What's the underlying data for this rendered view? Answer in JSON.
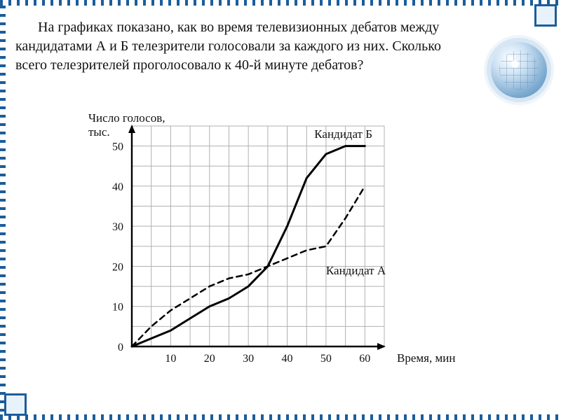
{
  "question": {
    "text": "На графиках показано, как во время телевизионных дебатов между кандидатами А и Б телезрители голосовали за каждого из них. Сколько всего телезрителей проголосовало к 40-й минуте дебатов?",
    "fontsize": 20,
    "color": "#111111"
  },
  "chart": {
    "type": "line",
    "background_color": "#ffffff",
    "grid_color": "#b0b0b0",
    "axis_color": "#000000",
    "x": {
      "label": "Время, мин",
      "min": 0,
      "max": 65,
      "ticks": [
        10,
        20,
        30,
        40,
        50,
        60
      ],
      "tick_step": 10,
      "grid_step": 5,
      "fontsize": 16
    },
    "y": {
      "label": "Число голосов, тыс.",
      "min": 0,
      "max": 55,
      "ticks": [
        0,
        10,
        20,
        30,
        40,
        50
      ],
      "tick_step": 10,
      "grid_step": 5,
      "fontsize": 16
    },
    "label_fontsize": 17,
    "series": [
      {
        "name": "Кандидат Б",
        "style": "solid",
        "color": "#000000",
        "line_width": 3,
        "label_xy": [
          47,
          52
        ],
        "points": [
          [
            0,
            0
          ],
          [
            5,
            2
          ],
          [
            10,
            4
          ],
          [
            15,
            7
          ],
          [
            20,
            10
          ],
          [
            25,
            12
          ],
          [
            30,
            15
          ],
          [
            35,
            20
          ],
          [
            40,
            30
          ],
          [
            45,
            42
          ],
          [
            50,
            48
          ],
          [
            55,
            50
          ],
          [
            60,
            50
          ]
        ]
      },
      {
        "name": "Кандидат А",
        "style": "dashed",
        "color": "#000000",
        "line_width": 2.5,
        "dash": "8 6",
        "label_xy": [
          50,
          18
        ],
        "points": [
          [
            0,
            0
          ],
          [
            5,
            5
          ],
          [
            10,
            9
          ],
          [
            15,
            12
          ],
          [
            20,
            15
          ],
          [
            25,
            17
          ],
          [
            30,
            18
          ],
          [
            35,
            20
          ],
          [
            40,
            22
          ],
          [
            45,
            24
          ],
          [
            50,
            25
          ],
          [
            55,
            32
          ],
          [
            60,
            40
          ]
        ]
      }
    ]
  },
  "decor": {
    "border_accent": "#1b5d9b",
    "border_bg": "#e8f2fb"
  }
}
